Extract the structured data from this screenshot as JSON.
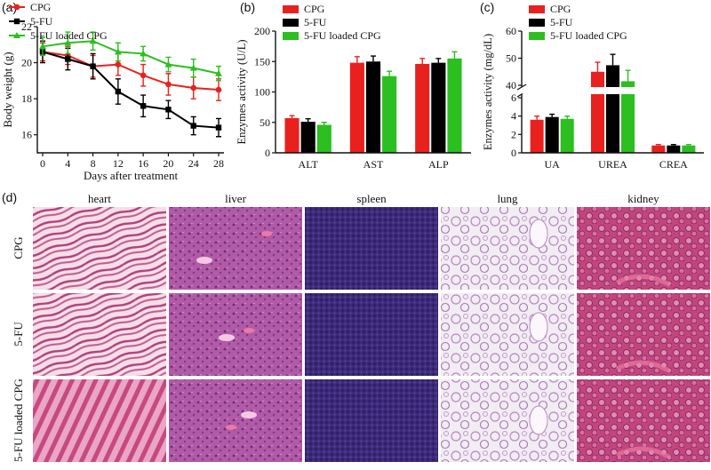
{
  "panel_labels": {
    "a": "(a)",
    "b": "(b)",
    "c": "(c)",
    "d": "(d)"
  },
  "colors": {
    "CPG": "#e8211f",
    "5-FU": "#000000",
    "5-FU loaded CPG": "#2bbf1f"
  },
  "chart_data": [
    {
      "id": "a",
      "type": "line",
      "xlabel": "Days after treatment",
      "ylabel": "Body weight (g)",
      "x": [
        0,
        4,
        8,
        12,
        16,
        20,
        24,
        28
      ],
      "xticks": [
        "0",
        "4",
        "8",
        "12",
        "16",
        "20",
        "24",
        "28"
      ],
      "yticks": [
        "16",
        "18",
        "20",
        "22"
      ],
      "ylim": [
        15,
        22
      ],
      "xlim": [
        0,
        28
      ],
      "legend_position": "top-left",
      "series": [
        {
          "name": "CPG",
          "values": [
            20.6,
            20.4,
            19.8,
            19.9,
            19.3,
            18.8,
            18.6,
            18.5
          ],
          "err": [
            0.5,
            0.5,
            0.6,
            0.6,
            0.6,
            0.6,
            0.6,
            0.6
          ]
        },
        {
          "name": "5-FU",
          "values": [
            20.6,
            20.2,
            19.8,
            18.4,
            17.6,
            17.4,
            16.5,
            16.4
          ],
          "err": [
            0.6,
            0.6,
            0.7,
            0.7,
            0.6,
            0.5,
            0.5,
            0.5
          ]
        },
        {
          "name": "5-FU loaded CPG",
          "values": [
            20.9,
            21.1,
            21.2,
            20.6,
            20.5,
            19.9,
            19.7,
            19.4
          ],
          "err": [
            0.5,
            0.6,
            0.5,
            0.5,
            0.4,
            0.4,
            0.5,
            0.4
          ]
        }
      ]
    },
    {
      "id": "b",
      "type": "bar",
      "ylabel": "Enzymes activity (U/L)",
      "categories": [
        "ALT",
        "AST",
        "ALP"
      ],
      "yticks": [
        "0",
        "50",
        "100",
        "150",
        "200"
      ],
      "ylim": [
        0,
        200
      ],
      "legend_position": "top-left",
      "series": [
        {
          "name": "CPG",
          "values": [
            57,
            148,
            146
          ],
          "err": [
            4,
            10,
            9
          ]
        },
        {
          "name": "5-FU",
          "values": [
            51,
            150,
            148
          ],
          "err": [
            5,
            9,
            7
          ]
        },
        {
          "name": "5-FU loaded CPG",
          "values": [
            46,
            126,
            155
          ],
          "err": [
            4,
            8,
            11
          ]
        }
      ]
    },
    {
      "id": "c",
      "type": "bar",
      "ylabel": "Enzymes activity (mg/dL)",
      "categories": [
        "UA",
        "UREA",
        "CREA"
      ],
      "yticks": [
        "0",
        "2",
        "4",
        "6",
        "40",
        "50",
        "60"
      ],
      "ylim_lower": [
        0,
        6
      ],
      "ylim_upper": [
        40,
        60
      ],
      "axis_break": true,
      "legend_position": "top-left",
      "series": [
        {
          "name": "CPG",
          "values": [
            3.6,
            45.0,
            0.8
          ],
          "err": [
            0.4,
            3.5,
            0.1
          ]
        },
        {
          "name": "5-FU",
          "values": [
            3.9,
            47.4,
            0.8
          ],
          "err": [
            0.3,
            4.0,
            0.1
          ]
        },
        {
          "name": "5-FU loaded CPG",
          "values": [
            3.7,
            41.5,
            0.8
          ],
          "err": [
            0.3,
            4.0,
            0.1
          ]
        }
      ]
    }
  ],
  "histology": {
    "columns": [
      "heart",
      "liver",
      "spleen",
      "lung",
      "kidney"
    ],
    "rows": [
      "CPG",
      "5-FU",
      "5-FU loaded CPG"
    ]
  }
}
